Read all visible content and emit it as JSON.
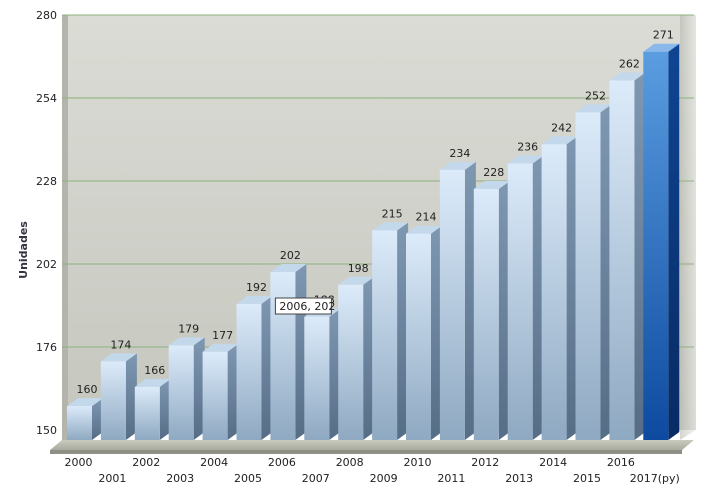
{
  "chart_data": {
    "type": "bar",
    "title": "",
    "xlabel": "",
    "ylabel": "Unidades",
    "ylim": [
      150,
      280
    ],
    "yticks": [
      150,
      176,
      202,
      228,
      254,
      280
    ],
    "grid": true,
    "categories": [
      "2000",
      "2001",
      "2002",
      "2003",
      "2004",
      "2005",
      "2006",
      "2007",
      "2008",
      "2009",
      "2010",
      "2011",
      "2012",
      "2013",
      "2014",
      "2015",
      "2016",
      "2017(py)"
    ],
    "values": [
      160,
      174,
      166,
      179,
      177,
      192,
      202,
      188,
      198,
      215,
      214,
      234,
      228,
      236,
      242,
      252,
      262,
      271
    ],
    "highlighted_category": "2017(py)",
    "tooltip": {
      "category": "2006",
      "value": "202",
      "text": "2006, 202"
    },
    "colors": {
      "bar_front_top": "#dcebfa",
      "bar_front_bottom": "#8fa9c2",
      "bar_side": "#667f99",
      "bar_top": "#c4d8ec",
      "highlight_front_top": "#5a9de0",
      "highlight_front_bottom": "#0d4aa0",
      "highlight_side": "#0a3375",
      "highlight_top": "#8ab8ea",
      "plot_bg_top": "#dadcd5",
      "plot_bg_bottom": "#c5c7bf",
      "gridline": "#8fb07e"
    }
  }
}
